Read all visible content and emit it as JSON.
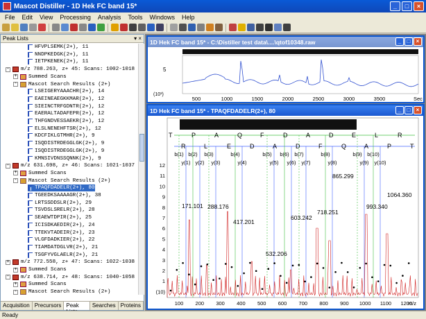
{
  "app": {
    "title": "Mascot Distiller - 1D Hek FC band 15*"
  },
  "menu": [
    "File",
    "Edit",
    "View",
    "Processing",
    "Analysis",
    "Tools",
    "Windows",
    "Help"
  ],
  "left_pane": {
    "title": "Peak Lists",
    "tabs": [
      "Acquisition",
      "Precursors",
      "Peak Lists",
      "Searches",
      "Proteins"
    ],
    "active_tab": "Peak Lists"
  },
  "tree": [
    {
      "indent": 3,
      "icon": "pep",
      "text": "HFVPLSEMK(2+), 11"
    },
    {
      "indent": 3,
      "icon": "pep",
      "text": "NNDPKEDGK(2+), 11"
    },
    {
      "indent": 3,
      "icon": "pep",
      "text": "IETPKENEK(2+), 11"
    },
    {
      "indent": 1,
      "icon": "scan",
      "text": "m/z 788.263, z+ 45: Scans: 1002-1018",
      "toggle": "-"
    },
    {
      "indent": 2,
      "icon": "sum",
      "text": "Summed Scans",
      "toggle": "+"
    },
    {
      "indent": 2,
      "icon": "res",
      "text": "Mascot Search Results (2+)",
      "toggle": "-"
    },
    {
      "indent": 3,
      "icon": "pep",
      "text": "LSEIGERYAAACHR(2+), 14"
    },
    {
      "indent": 3,
      "icon": "pep",
      "text": "EAEINEAEGKKMAR(2+), 12"
    },
    {
      "indent": 3,
      "icon": "pep",
      "text": "SIEINCTRFGDNTR(2+), 12"
    },
    {
      "indent": 3,
      "icon": "pep",
      "text": "EAERALTADAFEPR(2+), 12"
    },
    {
      "indent": 3,
      "icon": "pep",
      "text": "THFGNDVESSAEKR(2+), 12"
    },
    {
      "indent": 3,
      "icon": "pep",
      "text": "ELSLNENEHFTSR(2+), 12"
    },
    {
      "indent": 3,
      "icon": "pep",
      "text": "KDCFIKLGTMHR(2+), 9"
    },
    {
      "indent": 3,
      "icon": "pep",
      "text": "ISQDISTRDEGGLGK(2+), 9"
    },
    {
      "indent": 3,
      "icon": "pep",
      "text": "ISQDISTRDEGGLGK(2+), 9"
    },
    {
      "indent": 3,
      "icon": "pep",
      "text": "KMNSIVDNSSQNNK(2+), 9"
    },
    {
      "indent": 1,
      "icon": "scan",
      "text": "m/z 631.698, z+ 46: Scans: 1021-1037",
      "toggle": "-"
    },
    {
      "indent": 2,
      "icon": "sum",
      "text": "Summed Scans",
      "toggle": "+"
    },
    {
      "indent": 2,
      "icon": "res",
      "text": "Mascot Search Results (2+)",
      "toggle": "-"
    },
    {
      "indent": 3,
      "icon": "pep",
      "text": "TPAQFDADELR(2+), 80",
      "selected": true
    },
    {
      "indent": 3,
      "icon": "pep",
      "text": "TGEEDKSAAAAGR(2+), 38"
    },
    {
      "indent": 3,
      "icon": "pep",
      "text": "LRTSSDDSLR(2+), 29"
    },
    {
      "indent": 3,
      "icon": "pep",
      "text": "TSVDSLSRELR(2+), 28"
    },
    {
      "indent": 3,
      "icon": "pep",
      "text": "SEAEWTDPIR(2+), 25"
    },
    {
      "indent": 3,
      "icon": "pep",
      "text": "ICISDKAEDIR(2+), 24"
    },
    {
      "indent": 3,
      "icon": "pep",
      "text": "TTEKVTADEIR(2+), 23"
    },
    {
      "indent": 3,
      "icon": "pep",
      "text": "VLGFDADKIER(2+), 22"
    },
    {
      "indent": 3,
      "icon": "pep",
      "text": "TIAMDATDGLVR(2+), 21"
    },
    {
      "indent": 3,
      "icon": "pep",
      "text": "TSGFYVGLAELR(2+), 21"
    },
    {
      "indent": 1,
      "icon": "scan",
      "text": "m/z 772.558, z+ 47: Scans: 1022-1038",
      "toggle": "+"
    },
    {
      "indent": 2,
      "icon": "sum",
      "text": "Summed Scans",
      "toggle": "+"
    },
    {
      "indent": 1,
      "icon": "scan",
      "text": "m/z 638.714, z+ 48: Scans: 1040-1058",
      "toggle": "-"
    },
    {
      "indent": 2,
      "icon": "sum",
      "text": "Summed Scans",
      "toggle": "+"
    },
    {
      "indent": 2,
      "icon": "res",
      "text": "Mascot Search Results (2+)",
      "toggle": "-"
    }
  ],
  "win1": {
    "title": "1D Hek FC band 15* - C:\\Distiller test data\\....\\qtof10348.raw",
    "y_ticks": [
      "5",
      "(10³)"
    ],
    "x_ticks": [
      "500",
      "1000",
      "1500",
      "2000",
      "2500",
      "3000",
      "3500"
    ],
    "x_unit": "Sec"
  },
  "win2": {
    "title": "1D Hek FC band 15* - TPAQFDADELR(2+), 80",
    "sequence": [
      "T",
      "P",
      "A",
      "Q",
      "F",
      "D",
      "A",
      "D",
      "E",
      "L",
      "R"
    ],
    "reverse_sequence": [
      "R",
      "L",
      "E",
      "D",
      "A",
      "D",
      "F",
      "Q",
      "A",
      "P",
      "T"
    ],
    "b_labels": [
      "b(1)",
      "b(2)",
      "b(3)",
      "b(4)",
      "b(5)",
      "b(6)",
      "b(7)",
      "b(8)",
      "b(9)",
      "b(10)"
    ],
    "y_labels": [
      "y(1)",
      "y(2)",
      "y(3)",
      "y(4)",
      "y(5)",
      "y(6)",
      "y(7)",
      "y(8)",
      "y(9)",
      "y(10)"
    ],
    "peak_labels": [
      "171.101",
      "288.176",
      "417.201",
      "532.206",
      "603.242",
      "718.251",
      "865.299",
      "993.340",
      "1064.360"
    ],
    "y_ticks": [
      "12",
      "11",
      "10",
      "9",
      "8",
      "7",
      "6",
      "5",
      "4",
      "3",
      "2",
      "1",
      "(10)"
    ],
    "x_ticks": [
      "100",
      "200",
      "300",
      "400",
      "500",
      "600",
      "700",
      "800",
      "900",
      "1000",
      "1100",
      "1200"
    ],
    "x_unit": "m/z"
  },
  "status": "Ready"
}
